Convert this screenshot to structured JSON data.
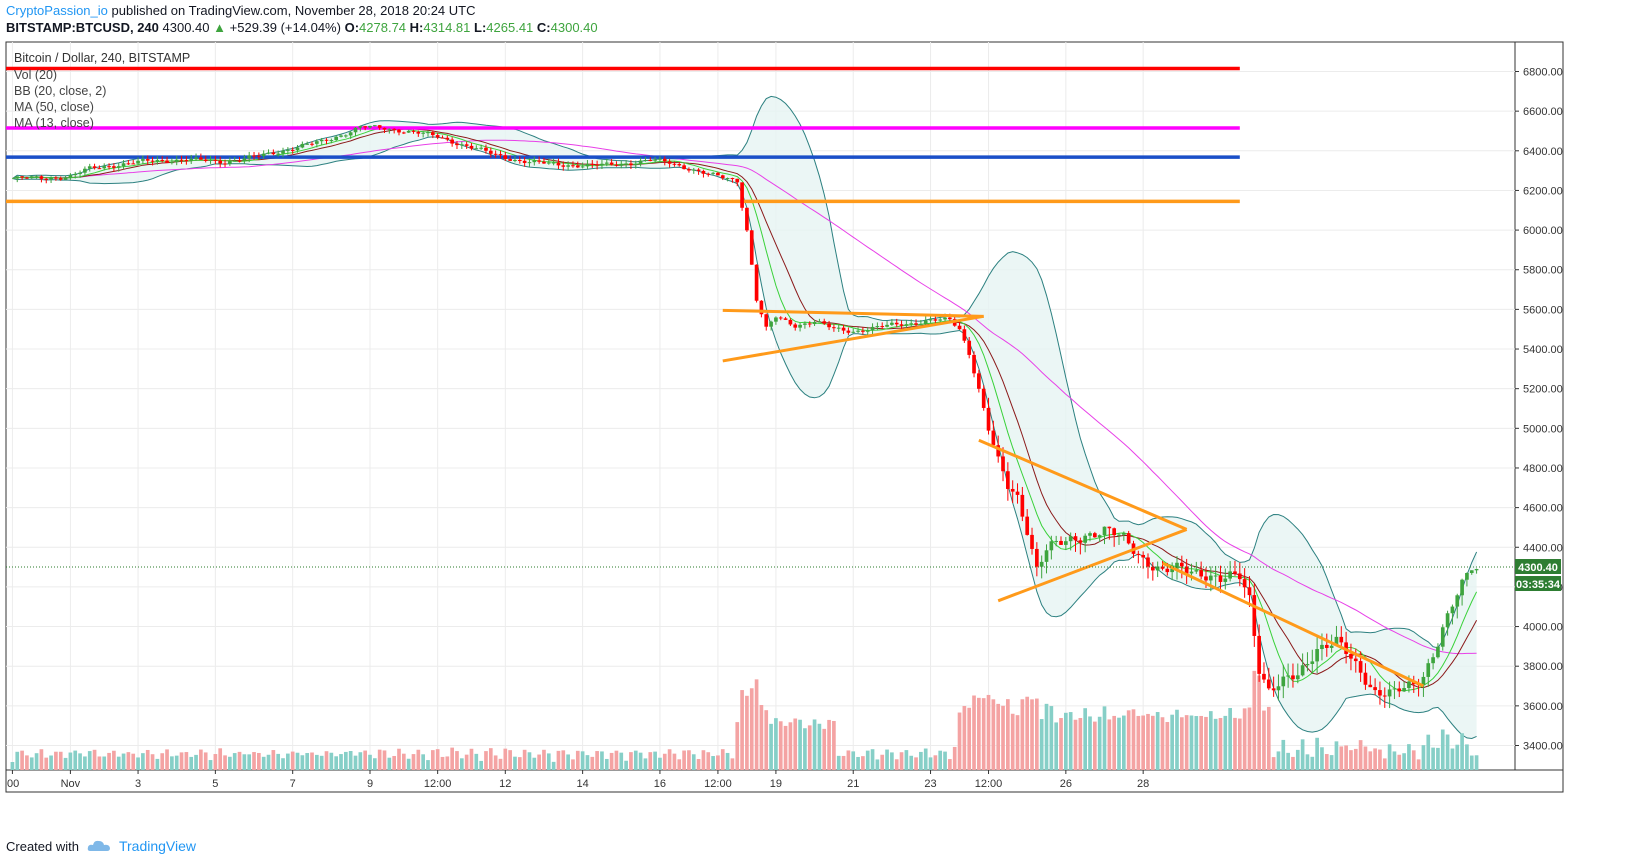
{
  "header": {
    "author": "CryptoPassion_io",
    "published_text": "published on TradingView.com, November 28, 2018 20:24 UTC",
    "symbol": "BITSTAMP:BTCUSD, 240",
    "last": "4300.40",
    "change_arrow": "▲",
    "change": "+529.39 (+14.04%)",
    "o_label": "O:",
    "o_value": "4278.74",
    "h_label": "H:",
    "h_value": "4314.81",
    "l_label": "L:",
    "l_value": "4265.41",
    "c_label": "C:",
    "c_value": "4300.40"
  },
  "legend": {
    "title": "Bitcoin / Dollar, 240, BITSTAMP",
    "vol": "Vol (20)",
    "bb": "BB (20, close, 2)",
    "ma1": "MA (50, close)",
    "ma2": "MA (13, close)"
  },
  "price_badge": "4300.40",
  "timer_badge": "03:35:34",
  "footer": {
    "created_with": "Created with",
    "brand": "TradingView",
    "logo": "tradingview-cloud-icon"
  },
  "colors": {
    "up": "#3ea43e",
    "down": "#ff0000",
    "vol_up": "#86cfc7",
    "vol_down": "#f4a3a3",
    "bb": "#2c8080",
    "bb_fill": "#e6f4f2",
    "ma50": "#e840e8",
    "ma13": "#8b1a1a",
    "ma_fast": "#39d139",
    "level_red": "#ff0000",
    "level_magenta": "#ff00ff",
    "level_blue": "#1a4fc8",
    "level_orange": "#ff9a1a",
    "trend": "#ff9a1a"
  },
  "chart_data": {
    "type": "candlestick",
    "title": "Bitcoin / Dollar, 240, BITSTAMP",
    "y_ticks": [
      "6800.00",
      "6600.00",
      "6400.00",
      "6200.00",
      "6000.00",
      "5800.00",
      "5600.00",
      "5400.00",
      "5200.00",
      "5000.00",
      "4800.00",
      "4600.00",
      "4400.00",
      "4200.00",
      "4000.00",
      "3800.00",
      "3600.00",
      "3400.00"
    ],
    "ylim": [
      3290,
      6940
    ],
    "x_ticks": [
      "00",
      "Nov",
      "3",
      "5",
      "7",
      "9",
      "12:00",
      "12",
      "14",
      "16",
      "12:00",
      "19",
      "21",
      "23",
      "12:00",
      "26",
      "28"
    ],
    "price_x": [
      [
        0,
        6260
      ],
      [
        4,
        6262
      ],
      [
        8,
        6265
      ],
      [
        12,
        6270
      ],
      [
        16,
        6310
      ],
      [
        20,
        6325
      ],
      [
        24,
        6335
      ],
      [
        28,
        6348
      ],
      [
        32,
        6352
      ],
      [
        36,
        6355
      ],
      [
        40,
        6350
      ],
      [
        44,
        6345
      ],
      [
        48,
        6360
      ],
      [
        52,
        6378
      ],
      [
        56,
        6402
      ],
      [
        60,
        6425
      ],
      [
        64,
        6445
      ],
      [
        68,
        6480
      ],
      [
        72,
        6520
      ],
      [
        76,
        6515
      ],
      [
        80,
        6505
      ],
      [
        84,
        6490
      ],
      [
        88,
        6470
      ],
      [
        92,
        6440
      ],
      [
        96,
        6410
      ],
      [
        100,
        6378
      ],
      [
        104,
        6355
      ],
      [
        108,
        6340
      ],
      [
        112,
        6332
      ],
      [
        116,
        6328
      ],
      [
        120,
        6325
      ],
      [
        124,
        6330
      ],
      [
        128,
        6340
      ],
      [
        132,
        6352
      ],
      [
        136,
        6340
      ],
      [
        140,
        6312
      ],
      [
        144,
        6280
      ],
      [
        148,
        6260
      ],
      [
        150,
        6250
      ],
      [
        152,
        6000
      ],
      [
        154,
        5650
      ],
      [
        156,
        5500
      ],
      [
        158,
        5560
      ],
      [
        162,
        5520
      ],
      [
        166,
        5540
      ],
      [
        170,
        5500
      ],
      [
        174,
        5490
      ],
      [
        178,
        5505
      ],
      [
        182,
        5520
      ],
      [
        186,
        5530
      ],
      [
        190,
        5545
      ],
      [
        194,
        5545
      ],
      [
        196,
        5500
      ],
      [
        198,
        5380
      ],
      [
        200,
        5200
      ],
      [
        202,
        5000
      ],
      [
        204,
        4820
      ],
      [
        206,
        4700
      ],
      [
        208,
        4650
      ],
      [
        210,
        4500
      ],
      [
        212,
        4300
      ],
      [
        214,
        4390
      ],
      [
        218,
        4420
      ],
      [
        222,
        4470
      ],
      [
        226,
        4480
      ],
      [
        230,
        4440
      ],
      [
        234,
        4350
      ],
      [
        238,
        4270
      ],
      [
        242,
        4290
      ],
      [
        246,
        4280
      ],
      [
        250,
        4230
      ],
      [
        254,
        4250
      ],
      [
        256,
        4150
      ],
      [
        258,
        3800
      ],
      [
        260,
        3680
      ],
      [
        262,
        3700
      ],
      [
        266,
        3750
      ],
      [
        270,
        3900
      ],
      [
        274,
        3920
      ],
      [
        278,
        3800
      ],
      [
        282,
        3680
      ],
      [
        286,
        3660
      ],
      [
        290,
        3700
      ],
      [
        292,
        3760
      ],
      [
        294,
        3870
      ],
      [
        296,
        3990
      ],
      [
        298,
        4100
      ],
      [
        300,
        4200
      ],
      [
        302,
        4300
      ]
    ],
    "annotations": {
      "horizontal_levels": [
        6815,
        6515,
        6368,
        6145
      ],
      "triangle_1": {
        "upper": [
          [
            147,
            5595
          ],
          [
            201,
            5565
          ]
        ],
        "lower": [
          [
            147,
            5340
          ],
          [
            201,
            5565
          ]
        ]
      },
      "triangle_2": {
        "upper": [
          [
            200,
            4940
          ],
          [
            243,
            4490
          ]
        ],
        "lower": [
          [
            204,
            4130
          ],
          [
            243,
            4490
          ]
        ]
      },
      "downtrend": {
        "line": [
          [
            238,
            4320
          ],
          [
            292,
            3700
          ]
        ]
      }
    }
  }
}
